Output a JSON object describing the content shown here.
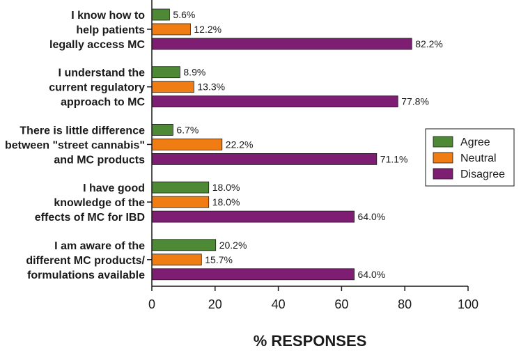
{
  "chart_data": {
    "type": "bar",
    "orientation": "horizontal",
    "categories": [
      [
        "I know how to",
        "help patients",
        "legally access MC"
      ],
      [
        "I understand the",
        "current regulatory",
        "approach to MC"
      ],
      [
        "There is little difference",
        "between \"street cannabis\"",
        "and MC products"
      ],
      [
        "I have good",
        "knowledge of the",
        "effects of  MC for  IBD"
      ],
      [
        "I am aware of the",
        "different MC products/",
        "formulations available"
      ]
    ],
    "series": [
      {
        "name": "Agree",
        "color": "#4e8a35",
        "values": [
          5.6,
          8.9,
          6.7,
          18.0,
          20.2
        ],
        "labels": [
          "5.6%",
          "8.9%",
          "6.7%",
          "18.0%",
          "20.2%"
        ]
      },
      {
        "name": "Neutral",
        "color": "#ef7d13",
        "values": [
          12.2,
          13.3,
          22.2,
          18.0,
          15.7
        ],
        "labels": [
          "12.2%",
          "13.3%",
          "22.2%",
          "18.0%",
          "15.7%"
        ]
      },
      {
        "name": "Disagree",
        "color": "#7e1e73",
        "values": [
          82.2,
          77.8,
          71.1,
          64.0,
          64.0
        ],
        "labels": [
          "82.2%",
          "77.8%",
          "71.1%",
          "64.0%",
          "64.0%"
        ]
      }
    ],
    "xlim": [
      0,
      100
    ],
    "xticks": [
      "0",
      "20",
      "40",
      "60",
      "80",
      "100"
    ],
    "xlabel": "% RESPONSES",
    "ylabel": "",
    "title": "",
    "legend_position": "right"
  }
}
